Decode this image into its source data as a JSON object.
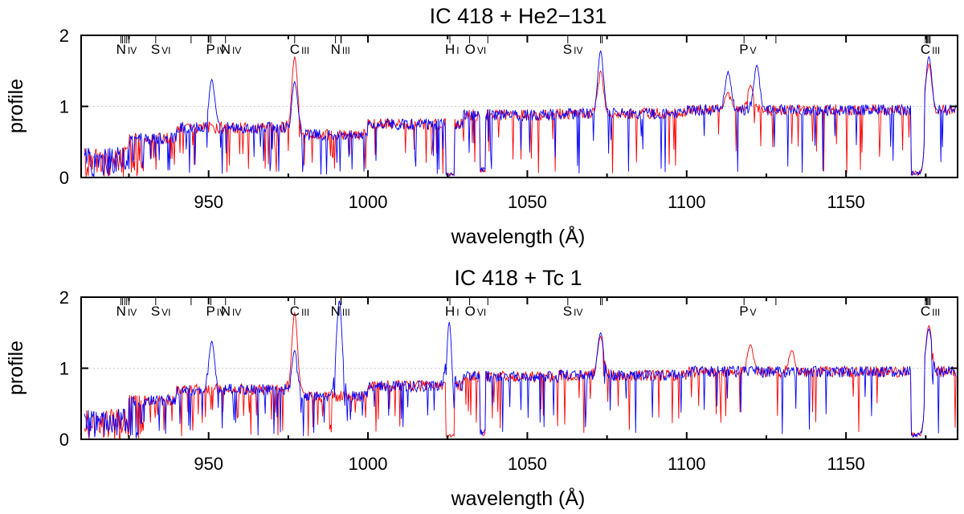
{
  "chart_data": [
    {
      "type": "line",
      "title": "IC 418  +  He2−131",
      "xlabel": "wavelength (Å)",
      "ylabel": "profile",
      "xlim": [
        910,
        1185
      ],
      "ylim": [
        0,
        2
      ],
      "xticks": [
        950,
        1000,
        1050,
        1100,
        1150
      ],
      "yticks": [
        0,
        1,
        2
      ],
      "grid": "horizontal dotted at 1",
      "series": [
        {
          "color": "#ff0000",
          "emission": [
            [
              977.0,
              1.7
            ],
            [
              1073.0,
              1.5
            ],
            [
              1120.0,
              1.3
            ],
            [
              1113.0,
              1.2
            ],
            [
              1176.0,
              1.6
            ]
          ]
        },
        {
          "color": "#0000ff",
          "emission": [
            [
              977.0,
              1.35
            ],
            [
              1073.0,
              1.78
            ],
            [
              1113.0,
              1.5
            ],
            [
              1122.0,
              1.58
            ],
            [
              951.0,
              1.38
            ],
            [
              1176.0,
              1.7
            ]
          ]
        }
      ],
      "line_ids": [
        {
          "label": "N",
          "stage": "IV",
          "ticks": [
            922.5,
            923.0,
            923.7,
            924.3,
            925.0
          ]
        },
        {
          "label": "S",
          "stage": "VI",
          "ticks": [
            933.4,
            944.5
          ]
        },
        {
          "label": "P",
          "stage": "IV",
          "ticks": [
            950.7
          ]
        },
        {
          "label": "N",
          "stage": "IV",
          "ticks": [
            955.3
          ]
        },
        {
          "label": "C",
          "stage": "III",
          "ticks": [
            977.0
          ]
        },
        {
          "label": "N",
          "stage": "III",
          "ticks": [
            989.8,
            991.5,
            991.6
          ]
        },
        {
          "label": "H",
          "stage": "I",
          "ticks": [
            1025.7
          ]
        },
        {
          "label": "O",
          "stage": "VI",
          "ticks": [
            1031.9,
            1037.6
          ]
        },
        {
          "label": "S",
          "stage": "IV",
          "ticks": [
            1062.7,
            1072.97,
            1073.5
          ]
        },
        {
          "label": "P",
          "stage": "V",
          "ticks": [
            1118.0,
            1128.0
          ]
        },
        {
          "label": "C",
          "stage": "III",
          "ticks": [
            1174.9,
            1175.3,
            1175.6,
            1176.0,
            1176.4
          ]
        }
      ]
    },
    {
      "type": "line",
      "title": "IC 418  +  Tc 1",
      "xlabel": "wavelength (Å)",
      "ylabel": "profile",
      "xlim": [
        910,
        1185
      ],
      "ylim": [
        0,
        2
      ],
      "xticks": [
        950,
        1000,
        1050,
        1100,
        1150
      ],
      "yticks": [
        0,
        1,
        2
      ],
      "grid": "horizontal dotted at 1",
      "series": [
        {
          "color": "#ff0000",
          "emission": [
            [
              977.0,
              1.78
            ],
            [
              1073.0,
              1.45
            ],
            [
              1120.0,
              1.33
            ],
            [
              1133.0,
              1.25
            ],
            [
              1176.0,
              1.6
            ]
          ]
        },
        {
          "color": "#0000ff",
          "emission": [
            [
              991.0,
              1.95
            ],
            [
              1025.5,
              1.65
            ],
            [
              977.0,
              1.25
            ],
            [
              1073.0,
              1.5
            ],
            [
              951.0,
              1.38
            ],
            [
              1176.0,
              1.55
            ]
          ]
        }
      ],
      "line_ids": [
        {
          "label": "N",
          "stage": "IV",
          "ticks": [
            922.5,
            923.0,
            923.7,
            924.3,
            925.0
          ]
        },
        {
          "label": "S",
          "stage": "VI",
          "ticks": [
            933.4,
            944.5
          ]
        },
        {
          "label": "P",
          "stage": "IV",
          "ticks": [
            950.7
          ]
        },
        {
          "label": "N",
          "stage": "IV",
          "ticks": [
            955.3
          ]
        },
        {
          "label": "C",
          "stage": "III",
          "ticks": [
            977.0
          ]
        },
        {
          "label": "N",
          "stage": "III",
          "ticks": [
            989.8,
            991.5,
            991.6
          ]
        },
        {
          "label": "H",
          "stage": "I",
          "ticks": [
            1025.7
          ]
        },
        {
          "label": "O",
          "stage": "VI",
          "ticks": [
            1031.9,
            1037.6
          ]
        },
        {
          "label": "S",
          "stage": "IV",
          "ticks": [
            1062.7,
            1072.97,
            1073.5
          ]
        },
        {
          "label": "P",
          "stage": "V",
          "ticks": [
            1118.0,
            1128.0
          ]
        },
        {
          "label": "C",
          "stage": "III",
          "ticks": [
            1174.9,
            1175.3,
            1175.6,
            1176.0,
            1176.4
          ]
        }
      ]
    }
  ]
}
